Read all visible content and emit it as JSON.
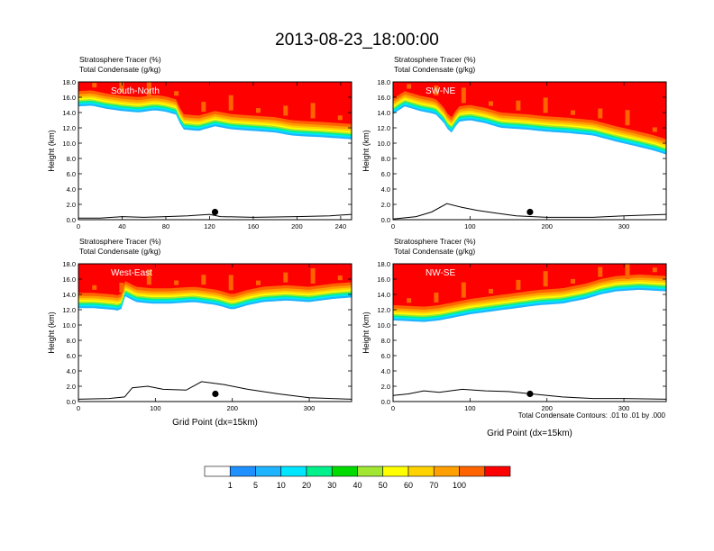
{
  "title": "2013-08-23_18:00:00",
  "colors": {
    "levels": [
      "#ffffff",
      "#1e90ff",
      "#1eb4ff",
      "#00e6ff",
      "#00f08c",
      "#00dc00",
      "#a0e632",
      "#ffff00",
      "#ffd200",
      "#ffa000",
      "#ff6400",
      "#ff0000"
    ],
    "contour": "#000000",
    "frame": "#000000"
  },
  "colorbar": {
    "labels": [
      "1",
      "5",
      "10",
      "20",
      "30",
      "40",
      "50",
      "60",
      "70",
      "100"
    ]
  },
  "footnote": "Total Condensate Contours: .01 to .01 by .000",
  "chart_data": [
    {
      "type": "heatmap",
      "name": "South-North",
      "title_line1": "Stratosphere Tracer   (%)",
      "title_line2": "Total Condensate   (g/kg)",
      "ylabel": "Height (km)",
      "xlabel": "",
      "xlim": [
        0,
        250
      ],
      "xticks": [
        "0",
        "40",
        "80",
        "120",
        "160",
        "200",
        "240"
      ],
      "ylim": [
        0,
        18
      ],
      "yticks": [
        "0.0",
        "2.0",
        "4.0",
        "6.0",
        "8.0",
        "10.0",
        "12.0",
        "14.0",
        "16.0",
        "18.0"
      ],
      "tropopause_km": [
        [
          0,
          14.8
        ],
        [
          12,
          14.9
        ],
        [
          25,
          14.5
        ],
        [
          40,
          14.2
        ],
        [
          55,
          14.0
        ],
        [
          70,
          14.3
        ],
        [
          80,
          14.1
        ],
        [
          90,
          13.7
        ],
        [
          95,
          11.8
        ],
        [
          110,
          11.6
        ],
        [
          125,
          12.2
        ],
        [
          140,
          11.8
        ],
        [
          160,
          11.6
        ],
        [
          180,
          11.4
        ],
        [
          195,
          11.0
        ],
        [
          205,
          10.9
        ],
        [
          220,
          10.8
        ],
        [
          240,
          10.6
        ],
        [
          250,
          10.5
        ]
      ],
      "terrain_km": [
        [
          0,
          0.2
        ],
        [
          20,
          0.2
        ],
        [
          40,
          0.4
        ],
        [
          60,
          0.3
        ],
        [
          80,
          0.4
        ],
        [
          100,
          0.5
        ],
        [
          120,
          0.7
        ],
        [
          130,
          0.4
        ],
        [
          160,
          0.3
        ],
        [
          200,
          0.4
        ],
        [
          230,
          0.5
        ],
        [
          250,
          0.7
        ]
      ],
      "marker": {
        "x": 125,
        "y": 1.0
      }
    },
    {
      "type": "heatmap",
      "name": "SW-NE",
      "title_line1": "Stratosphere Tracer   (%)",
      "title_line2": "Total Condensate   (g/kg)",
      "ylabel": "Height (km)",
      "xlabel": "",
      "xlim": [
        0,
        355
      ],
      "xticks": [
        "0",
        "100",
        "200",
        "300"
      ],
      "ylim": [
        0,
        18
      ],
      "yticks": [
        "0.0",
        "2.0",
        "4.0",
        "6.0",
        "8.0",
        "10.0",
        "12.0",
        "14.0",
        "16.0",
        "18.0"
      ],
      "tropopause_km": [
        [
          0,
          13.8
        ],
        [
          15,
          14.8
        ],
        [
          35,
          14.2
        ],
        [
          55,
          13.8
        ],
        [
          65,
          12.8
        ],
        [
          75,
          11.2
        ],
        [
          85,
          12.8
        ],
        [
          100,
          13.0
        ],
        [
          120,
          12.6
        ],
        [
          140,
          12.0
        ],
        [
          170,
          11.8
        ],
        [
          200,
          11.5
        ],
        [
          230,
          11.3
        ],
        [
          260,
          11.0
        ],
        [
          290,
          10.2
        ],
        [
          320,
          9.5
        ],
        [
          340,
          9.0
        ],
        [
          355,
          8.5
        ]
      ],
      "terrain_km": [
        [
          0,
          0.1
        ],
        [
          30,
          0.4
        ],
        [
          50,
          1.0
        ],
        [
          70,
          2.1
        ],
        [
          90,
          1.6
        ],
        [
          110,
          1.2
        ],
        [
          130,
          0.9
        ],
        [
          160,
          0.5
        ],
        [
          200,
          0.3
        ],
        [
          260,
          0.3
        ],
        [
          300,
          0.5
        ],
        [
          355,
          0.7
        ]
      ],
      "marker": {
        "x": 178,
        "y": 1.0
      }
    },
    {
      "type": "heatmap",
      "name": "West-East",
      "title_line1": "Stratosphere Tracer   (%)",
      "title_line2": "Total Condensate   (g/kg)",
      "ylabel": "Height (km)",
      "xlabel": "Grid Point (dx=15km)",
      "xlim": [
        0,
        355
      ],
      "xticks": [
        "0",
        "100",
        "200",
        "300"
      ],
      "ylim": [
        0,
        18
      ],
      "yticks": [
        "0.0",
        "2.0",
        "4.0",
        "6.0",
        "8.0",
        "10.0",
        "12.0",
        "14.0",
        "16.0",
        "18.0"
      ],
      "tropopause_km": [
        [
          0,
          12.2
        ],
        [
          20,
          12.2
        ],
        [
          45,
          12.0
        ],
        [
          55,
          11.8
        ],
        [
          60,
          13.8
        ],
        [
          75,
          13.0
        ],
        [
          95,
          12.8
        ],
        [
          120,
          12.8
        ],
        [
          150,
          13.0
        ],
        [
          180,
          12.6
        ],
        [
          200,
          12.0
        ],
        [
          220,
          12.6
        ],
        [
          240,
          13.0
        ],
        [
          270,
          13.2
        ],
        [
          300,
          13.0
        ],
        [
          330,
          13.4
        ],
        [
          355,
          13.6
        ]
      ],
      "terrain_km": [
        [
          0,
          0.3
        ],
        [
          40,
          0.4
        ],
        [
          60,
          0.6
        ],
        [
          70,
          1.8
        ],
        [
          90,
          2.0
        ],
        [
          110,
          1.6
        ],
        [
          140,
          1.5
        ],
        [
          160,
          2.6
        ],
        [
          190,
          2.2
        ],
        [
          220,
          1.6
        ],
        [
          260,
          1.0
        ],
        [
          300,
          0.5
        ],
        [
          355,
          0.3
        ]
      ],
      "marker": {
        "x": 178,
        "y": 1.0
      }
    },
    {
      "type": "heatmap",
      "name": "NW-SE",
      "title_line1": "Stratosphere Tracer   (%)",
      "title_line2": "Total Condensate   (g/kg)",
      "ylabel": "Height (km)",
      "xlabel": "Grid Point (dx=15km)",
      "xlim": [
        0,
        355
      ],
      "xticks": [
        "0",
        "100",
        "200",
        "300"
      ],
      "ylim": [
        0,
        18
      ],
      "yticks": [
        "0.0",
        "2.0",
        "4.0",
        "6.0",
        "8.0",
        "10.0",
        "12.0",
        "14.0",
        "16.0",
        "18.0"
      ],
      "tropopause_km": [
        [
          0,
          10.6
        ],
        [
          20,
          10.5
        ],
        [
          40,
          10.4
        ],
        [
          60,
          10.6
        ],
        [
          80,
          11.0
        ],
        [
          100,
          11.4
        ],
        [
          130,
          11.8
        ],
        [
          160,
          12.2
        ],
        [
          190,
          12.6
        ],
        [
          220,
          12.8
        ],
        [
          250,
          13.4
        ],
        [
          270,
          14.0
        ],
        [
          290,
          14.4
        ],
        [
          320,
          14.6
        ],
        [
          355,
          14.4
        ]
      ],
      "terrain_km": [
        [
          0,
          0.8
        ],
        [
          20,
          1.0
        ],
        [
          40,
          1.4
        ],
        [
          60,
          1.2
        ],
        [
          90,
          1.6
        ],
        [
          120,
          1.4
        ],
        [
          150,
          1.3
        ],
        [
          180,
          1.0
        ],
        [
          220,
          0.6
        ],
        [
          260,
          0.4
        ],
        [
          300,
          0.4
        ],
        [
          355,
          0.3
        ]
      ],
      "marker": {
        "x": 178,
        "y": 1.0
      }
    }
  ]
}
